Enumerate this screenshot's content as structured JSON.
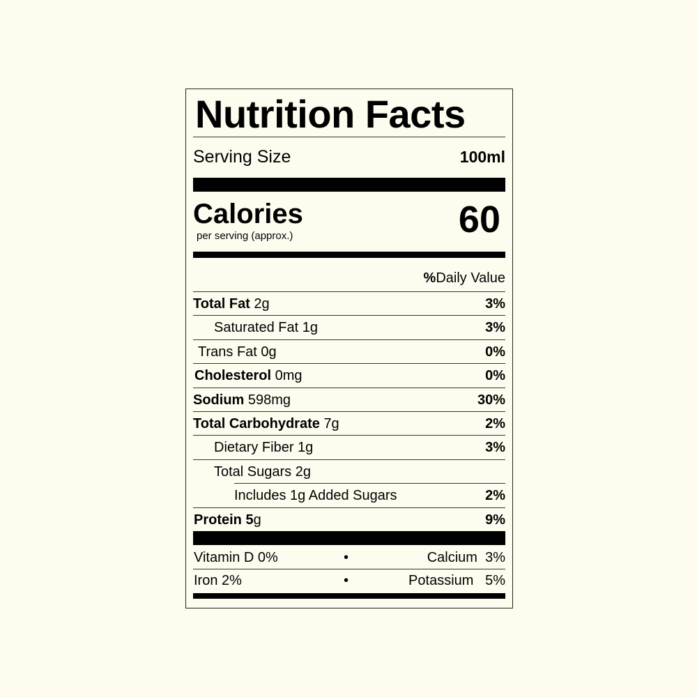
{
  "title": "Nutrition Facts",
  "serving": {
    "label": "Serving Size",
    "value": "100ml"
  },
  "calories": {
    "label": "Calories",
    "sublabel": "per serving (approx.)",
    "value": "60"
  },
  "daily_value_header": {
    "bold": "%",
    "rest": "Daily Value"
  },
  "nutrients": [
    {
      "name": "Total Fat",
      "amount": "2g",
      "dv": "3%"
    },
    {
      "name": "Saturated Fat",
      "amount": "1g",
      "dv": "3%"
    },
    {
      "name": "Trans Fat",
      "amount": "0g",
      "dv": "0%"
    },
    {
      "name": "Cholesterol",
      "amount": "0mg",
      "dv": "0%"
    },
    {
      "name": "Sodium",
      "amount": "598mg",
      "dv": "30%"
    },
    {
      "name": "Total Carbohydrate",
      "amount": "7g",
      "dv": "2%"
    },
    {
      "name": "Dietary Fiber",
      "amount": "1g",
      "dv": "3%"
    },
    {
      "name": "Total Sugars",
      "amount": "2g",
      "dv": ""
    },
    {
      "name": "Includes 1g Added Sugars",
      "amount": "",
      "dv": "2%"
    },
    {
      "name": "Protein 5",
      "amount": "g",
      "dv": "9%"
    }
  ],
  "vitamins": [
    {
      "left": "Vitamin D  0%",
      "bullet": "•",
      "right_name": "Calcium",
      "right_value": "3%"
    },
    {
      "left": "Iron  2%",
      "bullet": "•",
      "right_name": "Potassium",
      "right_value": "5%"
    }
  ]
}
